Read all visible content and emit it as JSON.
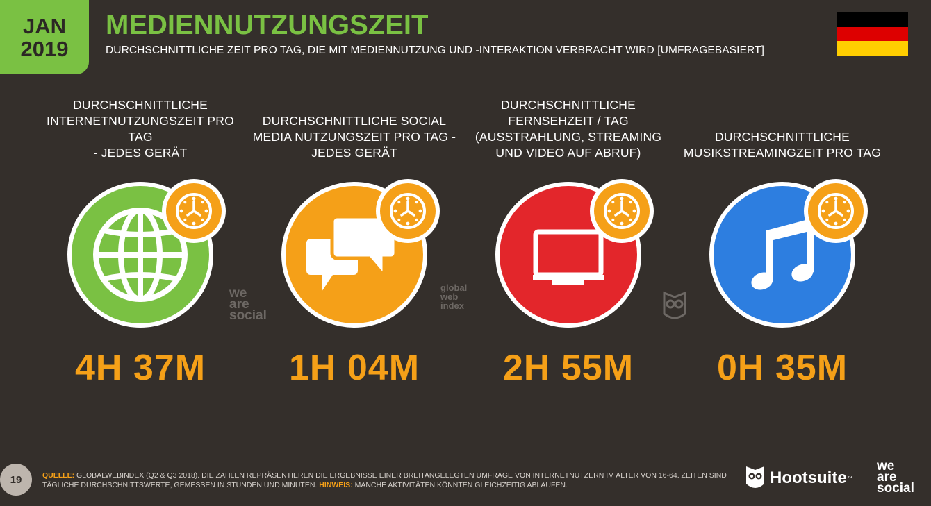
{
  "header": {
    "month": "JAN",
    "year": "2019",
    "title": "MEDIENNUTZUNGSZEIT",
    "subtitle": "DURCHSCHNITTLICHE ZEIT PRO TAG, DIE MIT MEDIENNUTZUNG UND -INTERAKTION VERBRACHT WIRD  [UMFRAGEBASIERT]",
    "flag_colors": [
      "#000000",
      "#dd0000",
      "#ffce00"
    ]
  },
  "stats": [
    {
      "label": "DURCHSCHNITTLICHE\nINTERNETNUTZUNGSZEIT PRO TAG\n- JEDES GERÄT",
      "value": "4H 37M",
      "icon": "globe-icon",
      "color": "#7ac143"
    },
    {
      "label": "DURCHSCHNITTLICHE SOCIAL\nMEDIA NUTZUNGSZEIT PRO TAG -\nJEDES GERÄT",
      "value": "1H 04M",
      "icon": "chat-bubbles-icon",
      "color": "#f5a018"
    },
    {
      "label": "DURCHSCHNITTLICHE\nFERNSEHZEIT / TAG\n(AUSSTRAHLUNG, STREAMING\nUND VIDEO AUF ABRUF)",
      "value": "2H 55M",
      "icon": "tv-icon",
      "color": "#e3262b"
    },
    {
      "label": "DURCHSCHNITTLICHE\nMUSIKSTREAMINGZEIT PRO TAG",
      "value": "0H 35M",
      "icon": "music-note-icon",
      "color": "#2d7ee0"
    }
  ],
  "accent_color": "#f5a018",
  "watermarks": {
    "wearesocial": "we\nare\nsocial",
    "globalwebindex": "global\nweb\nindex"
  },
  "footer": {
    "page_number": "19",
    "source_label": "QUELLE:",
    "source_text": " GLOBALWEBINDEX (Q2 & Q3 2018). DIE ZAHLEN REPRÄSENTIEREN DIE ERGEBNISSE EINER BREITANGELEGTEN UMFRAGE VON INTERNETNUTZERN IM ALTER VON 16-64. ZEITEN SIND TÄGLICHE DURCHSCHNITTSWERTE, GEMESSEN IN STUNDEN UND MINUTEN. ",
    "note_label": "HINWEIS:",
    "note_text": " MANCHE AKTIVITÄTEN KÖNNTEN GLEICHZEITIG ABLAUFEN.",
    "hootsuite": "Hootsuite",
    "tm": "™",
    "wearesocial": "we\nare\nsocial"
  }
}
